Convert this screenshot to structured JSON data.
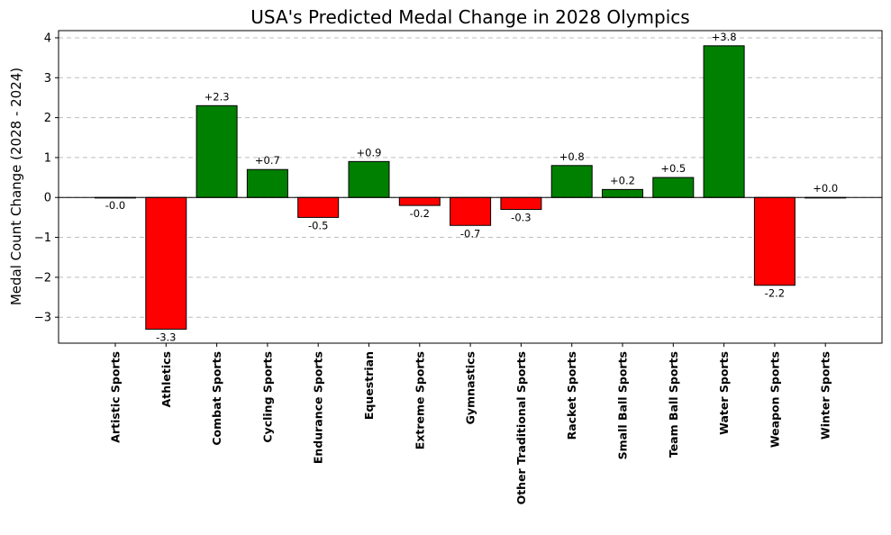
{
  "chart_data": {
    "type": "bar",
    "title": "USA's Predicted Medal Change in 2028 Olympics",
    "xlabel": "",
    "ylabel": "Medal Count Change (2028 - 2024)",
    "categories": [
      "Artistic Sports",
      "Athletics",
      "Combat Sports",
      "Cycling Sports",
      "Endurance Sports",
      "Equestrian",
      "Extreme Sports",
      "Gymnastics",
      "Other Traditional Sports",
      "Racket Sports",
      "Small Ball Sports",
      "Team Ball Sports",
      "Water Sports",
      "Weapon Sports",
      "Winter Sports"
    ],
    "values": [
      -0.0,
      -3.3,
      2.3,
      0.7,
      -0.5,
      0.9,
      -0.2,
      -0.7,
      -0.3,
      0.8,
      0.2,
      0.5,
      3.8,
      -2.2,
      0.0
    ],
    "data_labels": [
      "-0.0",
      "-3.3",
      "+2.3",
      "+0.7",
      "-0.5",
      "+0.9",
      "-0.2",
      "-0.7",
      "-0.3",
      "+0.8",
      "+0.2",
      "+0.5",
      "+3.8",
      "-2.2",
      "+0.0"
    ],
    "ylim": [
      -3.65,
      4.18
    ],
    "yticks": [
      -3,
      -2,
      -1,
      0,
      1,
      2,
      3,
      4
    ],
    "ytick_labels": [
      "−3",
      "−2",
      "−1",
      "0",
      "1",
      "2",
      "3",
      "4"
    ],
    "grid": "y-dashed",
    "colors": {
      "positive": "#008000",
      "negative": "#ff0000",
      "edge": "#000000",
      "grid": "#bdbdbd"
    }
  }
}
